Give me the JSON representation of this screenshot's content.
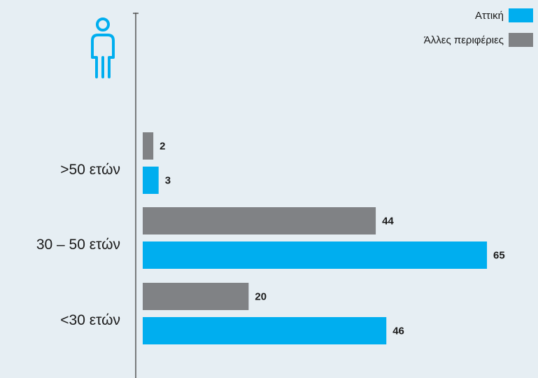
{
  "colors": {
    "attica": "#00aeef",
    "other": "#808285",
    "axis": "#555555",
    "icon": "#00aeef"
  },
  "icon": "person-icon",
  "chart_data": {
    "type": "bar",
    "orientation": "horizontal",
    "categories": [
      ">50 ετών",
      "30 – 50 ετών",
      "<30 ετών"
    ],
    "series": [
      {
        "name": "Άλλες περιφέριες",
        "values": [
          2,
          44,
          20
        ]
      },
      {
        "name": "Αττική",
        "values": [
          3,
          65,
          46
        ]
      }
    ],
    "legend": [
      {
        "name": "Αττική"
      },
      {
        "name": "Άλλες περιφέριες"
      }
    ],
    "legend_position": "top-right",
    "grid": false,
    "xlim": [
      0,
      65
    ]
  }
}
